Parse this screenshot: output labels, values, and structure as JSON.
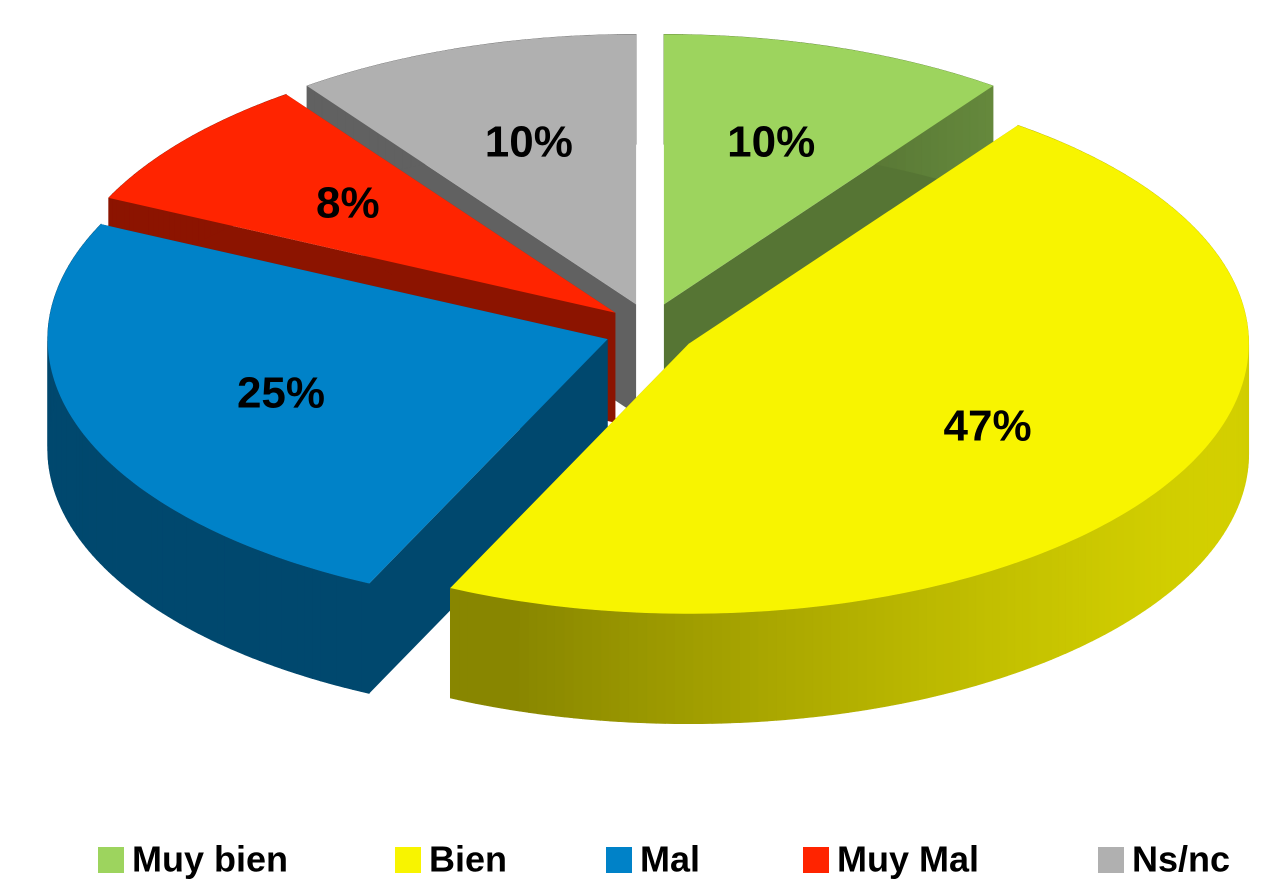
{
  "chart_data": {
    "type": "pie",
    "categories": [
      "Muy bien",
      "Bien",
      "Mal",
      "Muy Mal",
      "Ns/nc"
    ],
    "values": [
      10,
      47,
      25,
      8,
      10
    ],
    "value_labels": [
      "10%",
      "47%",
      "25%",
      "8%",
      "10%"
    ],
    "colors": [
      "#9dd45e",
      "#f8f400",
      "#0082c8",
      "#ff2400",
      "#b0b0b0"
    ],
    "legend": "bottom"
  }
}
